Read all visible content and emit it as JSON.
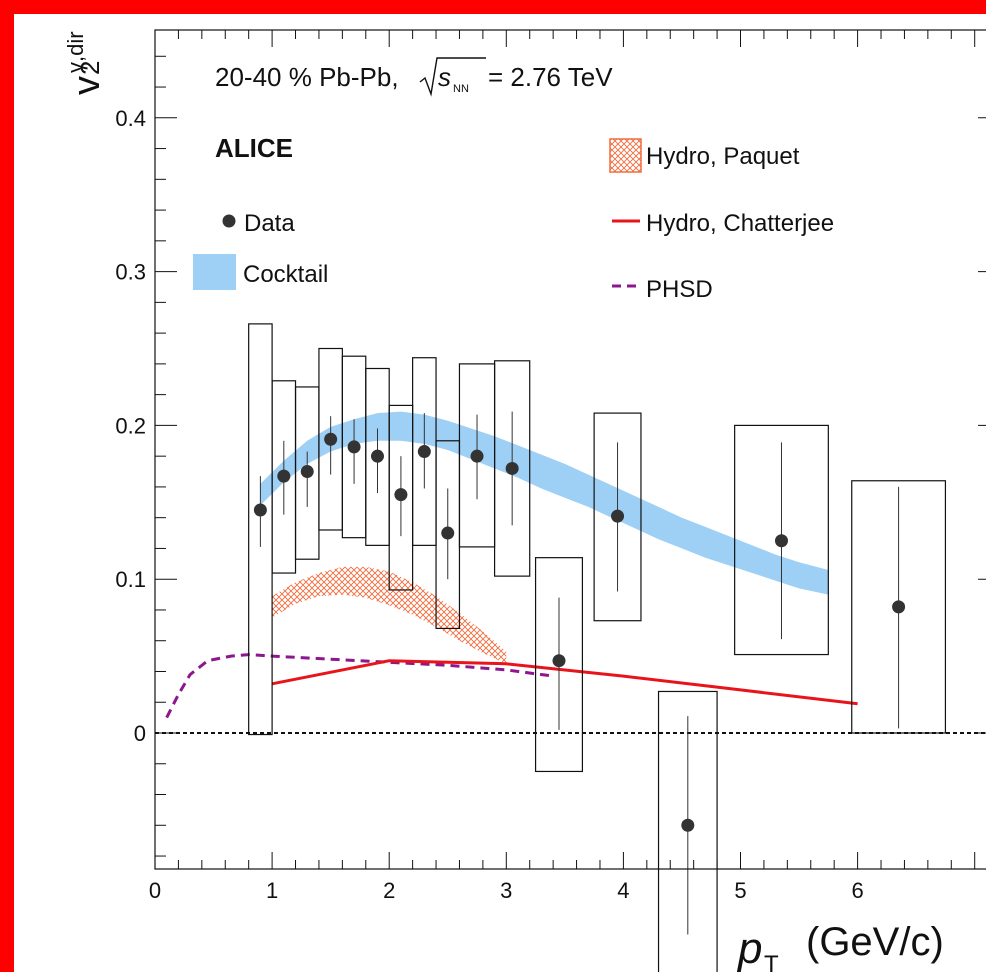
{
  "colors": {
    "frame": "#ff0000",
    "data_marker": "#333333",
    "cocktail_band": "#9ecff5",
    "hydro_paquet": "#f26b3c",
    "hydro_chatterjee": "#e8141a",
    "phsd": "#8e168e"
  },
  "chart_data": {
    "type": "scatter",
    "title": "",
    "ylabel_main": "v",
    "ylabel_super": "γ,dir",
    "ylabel_sub": "2",
    "xlabel_italic": "p",
    "xlabel_sub": "T",
    "xlabel_unit": "(GeV/c)",
    "xlim": [
      0,
      7
    ],
    "ylim": [
      -0.09,
      0.46
    ],
    "xticks": [
      "0",
      "1",
      "2",
      "3",
      "4",
      "5",
      "6"
    ],
    "yticks": [
      "0",
      "0.1",
      "0.2",
      "0.3",
      "0.4"
    ],
    "system_label": "20-40 % Pb-Pb,",
    "energy_label": "= 2.76 TeV",
    "energy_symbol": "s",
    "energy_sub": "NN",
    "experiment_label": "ALICE",
    "legend": {
      "data": "Data",
      "cocktail": "Cocktail",
      "hydro_paquet": "Hydro, Paquet",
      "hydro_chatterjee": "Hydro, Chatterjee",
      "phsd": "PHSD"
    },
    "data": {
      "x": [
        0.9,
        1.1,
        1.3,
        1.5,
        1.7,
        1.9,
        2.1,
        2.3,
        2.5,
        2.75,
        3.05,
        3.45,
        3.95,
        4.55,
        5.35,
        6.35
      ],
      "y": [
        0.145,
        0.167,
        0.17,
        0.191,
        0.186,
        0.18,
        0.155,
        0.183,
        0.13,
        0.18,
        0.172,
        0.047,
        0.141,
        -0.06,
        0.125,
        0.082
      ],
      "stat_lo": [
        0.121,
        0.142,
        0.147,
        0.168,
        0.162,
        0.156,
        0.128,
        0.159,
        0.1,
        0.152,
        0.135,
        0.002,
        0.092,
        -0.131,
        0.061,
        0.003
      ],
      "stat_hi": [
        0.167,
        0.19,
        0.183,
        0.206,
        0.204,
        0.198,
        0.18,
        0.208,
        0.159,
        0.207,
        0.209,
        0.088,
        0.189,
        0.011,
        0.189,
        0.16
      ],
      "sys_lo": [
        -0.001,
        0.104,
        0.113,
        0.132,
        0.127,
        0.122,
        0.093,
        0.122,
        0.068,
        0.121,
        0.102,
        -0.025,
        0.073,
        -0.16,
        0.051,
        0.0
      ],
      "sys_hi": [
        0.266,
        0.229,
        0.225,
        0.25,
        0.245,
        0.237,
        0.213,
        0.244,
        0.19,
        0.24,
        0.242,
        0.114,
        0.208,
        0.027,
        0.2,
        0.164
      ],
      "sys_half_width": [
        0.1,
        0.1,
        0.1,
        0.1,
        0.1,
        0.1,
        0.1,
        0.1,
        0.1,
        0.15,
        0.15,
        0.2,
        0.2,
        0.25,
        0.4,
        0.4
      ]
    },
    "cocktail": {
      "x": [
        0.9,
        1.1,
        1.3,
        1.5,
        1.7,
        1.9,
        2.1,
        2.3,
        2.5,
        2.7,
        2.9,
        3.1,
        3.3,
        3.5,
        3.7,
        3.9,
        4.1,
        4.3,
        4.5,
        4.7,
        4.9,
        5.1,
        5.3,
        5.5,
        5.75
      ],
      "lo": [
        0.148,
        0.163,
        0.175,
        0.183,
        0.188,
        0.19,
        0.19,
        0.188,
        0.184,
        0.178,
        0.172,
        0.166,
        0.159,
        0.153,
        0.147,
        0.14,
        0.133,
        0.126,
        0.12,
        0.114,
        0.109,
        0.104,
        0.099,
        0.094,
        0.09
      ],
      "hi": [
        0.162,
        0.177,
        0.19,
        0.199,
        0.204,
        0.208,
        0.209,
        0.207,
        0.203,
        0.198,
        0.193,
        0.187,
        0.181,
        0.175,
        0.168,
        0.161,
        0.154,
        0.147,
        0.14,
        0.134,
        0.128,
        0.122,
        0.116,
        0.111,
        0.106
      ]
    },
    "hydro_paquet": {
      "x": [
        1.0,
        1.2,
        1.4,
        1.6,
        1.8,
        2.0,
        2.2,
        2.4,
        2.6,
        2.8,
        3.0
      ],
      "lo": [
        0.075,
        0.084,
        0.089,
        0.09,
        0.088,
        0.083,
        0.077,
        0.069,
        0.06,
        0.052,
        0.045
      ],
      "hi": [
        0.089,
        0.098,
        0.104,
        0.108,
        0.108,
        0.105,
        0.098,
        0.089,
        0.078,
        0.066,
        0.053
      ]
    },
    "hydro_chatterjee": {
      "x": [
        1.0,
        2.0,
        3.0,
        4.0,
        5.0,
        6.0
      ],
      "y": [
        0.032,
        0.047,
        0.045,
        0.037,
        0.028,
        0.019
      ]
    },
    "phsd": {
      "x": [
        0.1,
        0.2,
        0.3,
        0.45,
        0.65,
        0.8,
        1.0,
        1.5,
        2.0,
        2.5,
        3.0,
        3.4
      ],
      "y": [
        0.01,
        0.025,
        0.038,
        0.047,
        0.05,
        0.051,
        0.05,
        0.048,
        0.046,
        0.044,
        0.041,
        0.037
      ]
    }
  }
}
